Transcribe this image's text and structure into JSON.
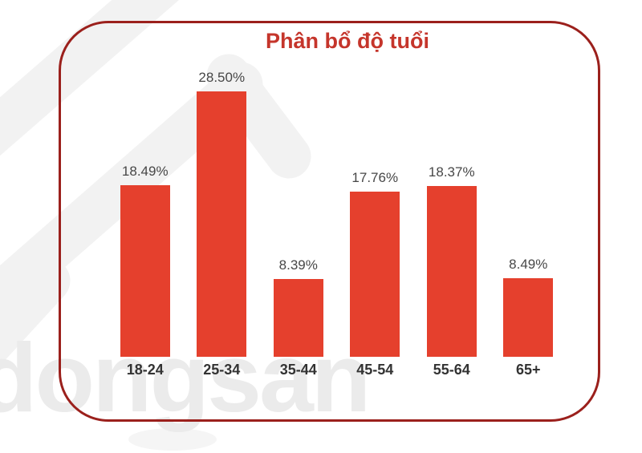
{
  "watermark": {
    "brand_text": "dongsan",
    "text_color": "#ebebeb",
    "shape_color": "#f2f2f2"
  },
  "card": {
    "border_color": "#9B201C"
  },
  "chart_data": {
    "type": "bar",
    "title": "Phân bổ độ tuổi",
    "title_color": "#C5352B",
    "categories": [
      "18-24",
      "25-34",
      "35-44",
      "45-54",
      "55-64",
      "65+"
    ],
    "values": [
      18.49,
      28.5,
      8.39,
      17.76,
      18.37,
      8.49
    ],
    "value_labels": [
      "18.49%",
      "28.50%",
      "8.39%",
      "17.76%",
      "18.37%",
      "8.49%"
    ],
    "bar_color": "#E5402D",
    "value_label_color": "#474747",
    "axis_label_color": "#333333",
    "xlabel": "",
    "ylabel": "",
    "ylim": [
      0,
      31.5
    ],
    "grid": false,
    "axes_visible": false,
    "legend": "none"
  }
}
